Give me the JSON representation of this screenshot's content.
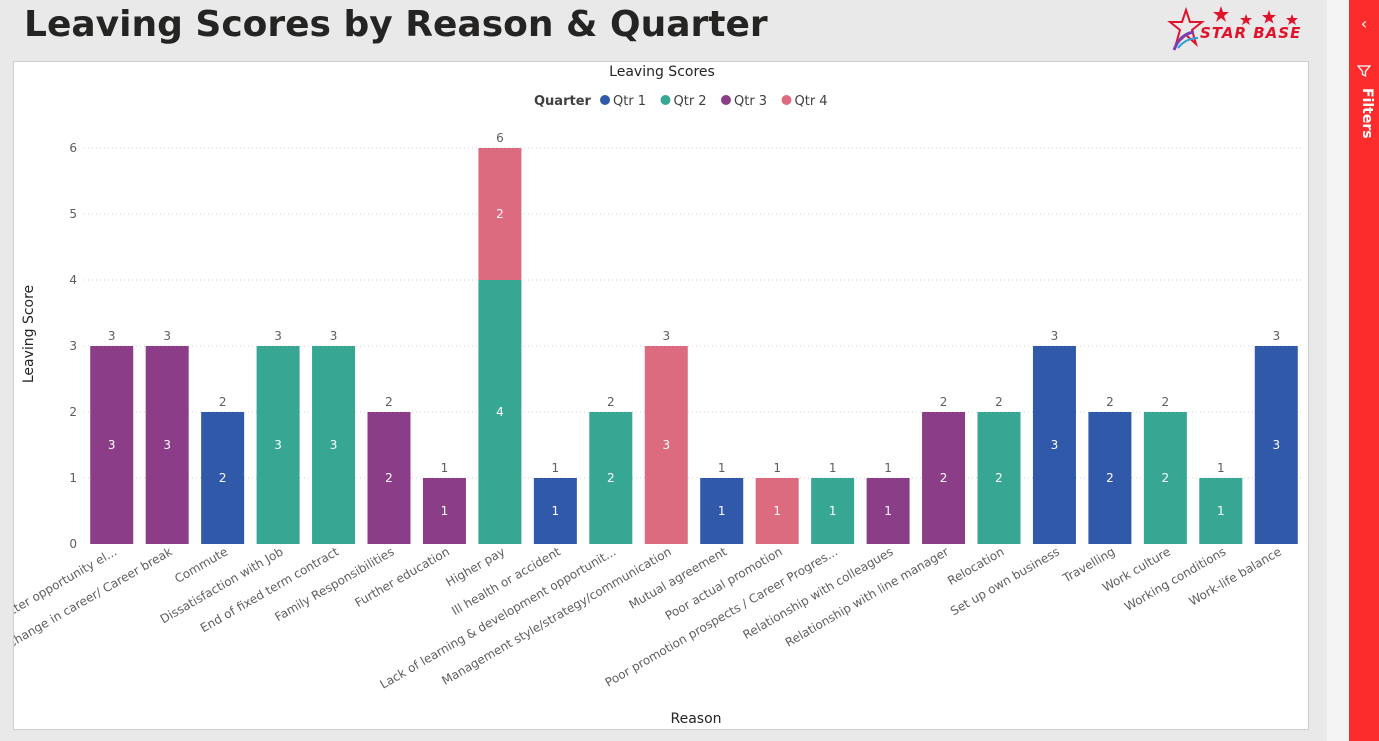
{
  "page": {
    "title": "Leaving Scores by Reason & Quarter"
  },
  "logo": {
    "text": "STAR BASE"
  },
  "filters_pane": {
    "label": "Filters",
    "collapse_icon": "chevron-left-icon",
    "filter_icon": "funnel-icon"
  },
  "chart_data": {
    "type": "bar",
    "stacked": true,
    "title": "Leaving Scores",
    "xlabel": "Reason",
    "ylabel": "Leaving Score",
    "ylim": [
      0,
      6
    ],
    "yticks": [
      0,
      1,
      2,
      3,
      4,
      5,
      6
    ],
    "grid": true,
    "legend_title": "Quarter",
    "legend_position": "top-center",
    "categories": [
      "Better opportunity el...",
      "Change in career/ Career break",
      "Commute",
      "Dissatisfaction with Job",
      "End of fixed term contract",
      "Family Responsibilities",
      "Further education",
      "Higher pay",
      "Ill health or accident",
      "Lack of learning & development opportunit...",
      "Management style/strategy/communication",
      "Mutual agreement",
      "Poor actual promotion",
      "Poor promotion prospects / Career Progres...",
      "Relationship with colleagues",
      "Relationship with line manager",
      "Relocation",
      "Set up own business",
      "Travelling",
      "Work culture",
      "Working conditions",
      "Work-life balance"
    ],
    "series": [
      {
        "name": "Qtr 1",
        "color": "#3159aa",
        "values": [
          0,
          0,
          2,
          0,
          0,
          0,
          0,
          0,
          1,
          0,
          0,
          1,
          0,
          0,
          0,
          0,
          0,
          3,
          2,
          0,
          0,
          3
        ]
      },
      {
        "name": "Qtr 2",
        "color": "#37a794",
        "values": [
          0,
          0,
          0,
          3,
          3,
          0,
          0,
          4,
          0,
          2,
          0,
          0,
          0,
          1,
          0,
          0,
          2,
          0,
          0,
          2,
          1,
          0
        ]
      },
      {
        "name": "Qtr 3",
        "color": "#8b3d88",
        "values": [
          3,
          3,
          0,
          0,
          0,
          2,
          1,
          0,
          0,
          0,
          0,
          0,
          0,
          0,
          1,
          2,
          0,
          0,
          0,
          0,
          0,
          0
        ]
      },
      {
        "name": "Qtr 4",
        "color": "#dd6b7f",
        "values": [
          0,
          0,
          0,
          0,
          0,
          0,
          0,
          2,
          0,
          0,
          3,
          0,
          1,
          0,
          0,
          0,
          0,
          0,
          0,
          0,
          0,
          0
        ]
      }
    ],
    "totals": [
      3,
      3,
      2,
      3,
      3,
      2,
      1,
      6,
      1,
      2,
      3,
      1,
      1,
      1,
      1,
      2,
      2,
      3,
      2,
      2,
      1,
      3
    ]
  }
}
